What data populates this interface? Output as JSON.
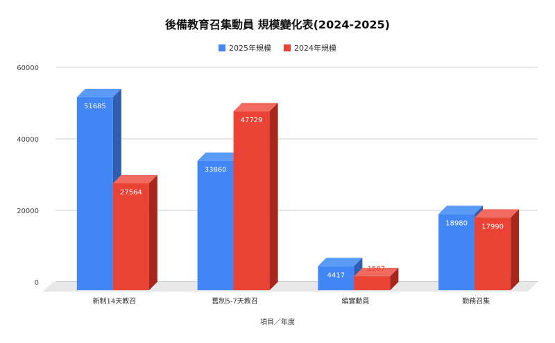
{
  "chart_data": {
    "type": "bar",
    "title": "後備教育召集動員 規模變化表(2024-2025)",
    "xlabel": "項目／年度",
    "ylabel": "",
    "categories": [
      "新制14天教召",
      "舊制5-7天教召",
      "編實動員",
      "勤務召集"
    ],
    "series": [
      {
        "name": "2025年規模",
        "values": [
          51685,
          33860,
          4417,
          18980
        ],
        "color": "#4285f4",
        "side": "#2f5fb3",
        "top": "#5b9bf8"
      },
      {
        "name": "2024年規模",
        "values": [
          27564,
          47729,
          1587,
          17990
        ],
        "color": "#ea4335",
        "side": "#a8261c",
        "top": "#f06a5f"
      }
    ],
    "ylim": [
      0,
      60000
    ],
    "yticks": [
      "0",
      "20000",
      "40000",
      "60000"
    ],
    "grid": true,
    "legend": "top-center"
  }
}
